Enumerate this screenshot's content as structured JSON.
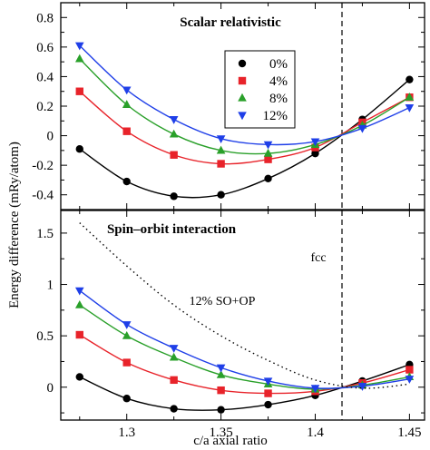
{
  "chart_data": [
    {
      "type": "line",
      "title": "Scalar relativistic",
      "ylabel": "Energy difference (mRy/atom)",
      "xlabel": "c/a axial ratio",
      "xlim": [
        1.265,
        1.458
      ],
      "ylim": [
        -0.5,
        0.9
      ],
      "yticks": [
        "-0.4",
        "-0.2",
        "0",
        "0.2",
        "0.4",
        "0.6",
        "0.8"
      ],
      "legend_position": "upper-right",
      "vline": {
        "x": 1.4142
      },
      "series": [
        {
          "name": "0%",
          "color": "#000000",
          "marker": "circle",
          "points": [
            [
              1.275,
              -0.09
            ],
            [
              1.3,
              -0.31
            ],
            [
              1.325,
              -0.41
            ],
            [
              1.35,
              -0.4
            ],
            [
              1.375,
              -0.29
            ],
            [
              1.4,
              -0.12
            ],
            [
              1.425,
              0.11
            ],
            [
              1.45,
              0.38
            ]
          ]
        },
        {
          "name": "4%",
          "color": "#e8232a",
          "marker": "square",
          "points": [
            [
              1.275,
              0.3
            ],
            [
              1.3,
              0.03
            ],
            [
              1.325,
              -0.13
            ],
            [
              1.35,
              -0.19
            ],
            [
              1.375,
              -0.16
            ],
            [
              1.4,
              -0.08
            ],
            [
              1.425,
              0.09
            ],
            [
              1.45,
              0.26
            ]
          ]
        },
        {
          "name": "8%",
          "color": "#2aa02a",
          "marker": "triangle-up",
          "points": [
            [
              1.275,
              0.52
            ],
            [
              1.3,
              0.21
            ],
            [
              1.325,
              0.01
            ],
            [
              1.35,
              -0.1
            ],
            [
              1.375,
              -0.12
            ],
            [
              1.4,
              -0.06
            ],
            [
              1.425,
              0.07
            ],
            [
              1.45,
              0.26
            ]
          ]
        },
        {
          "name": "12%",
          "color": "#1f3fe8",
          "marker": "triangle-down",
          "points": [
            [
              1.275,
              0.61
            ],
            [
              1.3,
              0.31
            ],
            [
              1.325,
              0.11
            ],
            [
              1.35,
              -0.02
            ],
            [
              1.375,
              -0.06
            ],
            [
              1.4,
              -0.04
            ],
            [
              1.425,
              0.05
            ],
            [
              1.45,
              0.19
            ]
          ]
        }
      ]
    },
    {
      "type": "line",
      "title": "Spin–orbit interaction",
      "ylabel": "Energy difference (mRy/atom)",
      "xlabel": "c/a axial ratio",
      "xlim": [
        1.265,
        1.458
      ],
      "ylim": [
        -0.32,
        1.72
      ],
      "xticks": [
        "1.3",
        "1.35",
        "1.4",
        "1.45"
      ],
      "yticks": [
        "0",
        "0.5",
        "1",
        "1.5"
      ],
      "vline": {
        "x": 1.4142,
        "label": "fcc"
      },
      "annotation": "12% SO+OP",
      "series": [
        {
          "name": "0%",
          "color": "#000000",
          "marker": "circle",
          "points": [
            [
              1.275,
              0.1
            ],
            [
              1.3,
              -0.11
            ],
            [
              1.325,
              -0.21
            ],
            [
              1.35,
              -0.22
            ],
            [
              1.375,
              -0.17
            ],
            [
              1.4,
              -0.08
            ],
            [
              1.425,
              0.06
            ],
            [
              1.45,
              0.22
            ]
          ]
        },
        {
          "name": "4%",
          "color": "#e8232a",
          "marker": "square",
          "points": [
            [
              1.275,
              0.51
            ],
            [
              1.3,
              0.24
            ],
            [
              1.325,
              0.07
            ],
            [
              1.35,
              -0.03
            ],
            [
              1.375,
              -0.06
            ],
            [
              1.4,
              -0.04
            ],
            [
              1.425,
              0.04
            ],
            [
              1.45,
              0.17
            ]
          ]
        },
        {
          "name": "8%",
          "color": "#2aa02a",
          "marker": "triangle-up",
          "points": [
            [
              1.275,
              0.8
            ],
            [
              1.3,
              0.5
            ],
            [
              1.325,
              0.29
            ],
            [
              1.35,
              0.12
            ],
            [
              1.375,
              0.03
            ],
            [
              1.4,
              -0.02
            ],
            [
              1.425,
              0.02
            ],
            [
              1.45,
              0.1
            ]
          ]
        },
        {
          "name": "12%",
          "color": "#1f3fe8",
          "marker": "triangle-down",
          "points": [
            [
              1.275,
              0.94
            ],
            [
              1.3,
              0.61
            ],
            [
              1.325,
              0.38
            ],
            [
              1.35,
              0.19
            ],
            [
              1.375,
              0.06
            ],
            [
              1.4,
              -0.01
            ],
            [
              1.425,
              0.01
            ],
            [
              1.45,
              0.08
            ]
          ]
        },
        {
          "name": "12% SO+OP",
          "color": "#000000",
          "marker": "none",
          "dashed": true,
          "points": [
            [
              1.275,
              1.6
            ],
            [
              1.3,
              1.18
            ],
            [
              1.325,
              0.8
            ],
            [
              1.35,
              0.5
            ],
            [
              1.375,
              0.26
            ],
            [
              1.4,
              0.07
            ],
            [
              1.425,
              -0.01
            ],
            [
              1.45,
              0.03
            ]
          ]
        }
      ]
    }
  ]
}
